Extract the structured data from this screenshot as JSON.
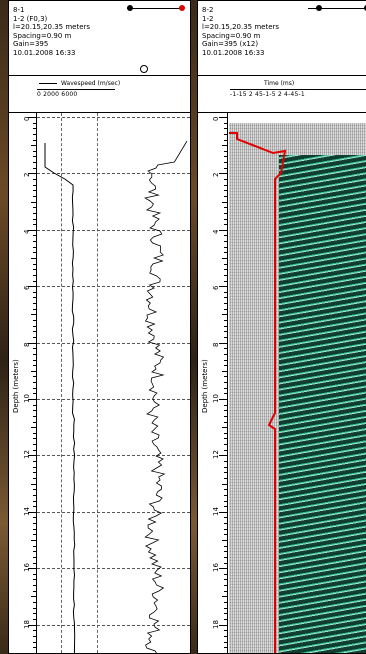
{
  "panel_left": {
    "header": {
      "line1": "8-1",
      "line2": "1-2 (F0,3)",
      "line3": "l=20.15,20.35 meters",
      "line4": "Spacing=0.90 m",
      "line5": "Gain=395",
      "line6": "10.01.2008 16:33"
    },
    "axis_label": "Wavespeed (m/sec)",
    "axis_ticks": "0  2000    6000",
    "depth_label": "Depth (meters)",
    "depth_ticks": [
      "0",
      "2",
      "4",
      "6",
      "8",
      "10",
      "12",
      "14",
      "16",
      "18"
    ]
  },
  "panel_right": {
    "header": {
      "line1": "8-2",
      "line2": "1-2",
      "line3": "l=20.15,20.35 meters",
      "line4": "Spacing=0.90 m",
      "line5": "Gain=395 (x12)",
      "line6": "10.01.2008 16:33"
    },
    "axis_label": "Time (ms)",
    "axis_ticks": "-1-15  2  45-1-5  2  4-45-1",
    "depth_label": "Depth (meters)",
    "depth_ticks": [
      "0",
      "2",
      "4",
      "6",
      "8",
      "10",
      "12",
      "14",
      "16",
      "18"
    ]
  },
  "colors": {
    "pick_line": "#e00000",
    "waveform": "#1a6e55",
    "handle_red": "#dd0000"
  }
}
